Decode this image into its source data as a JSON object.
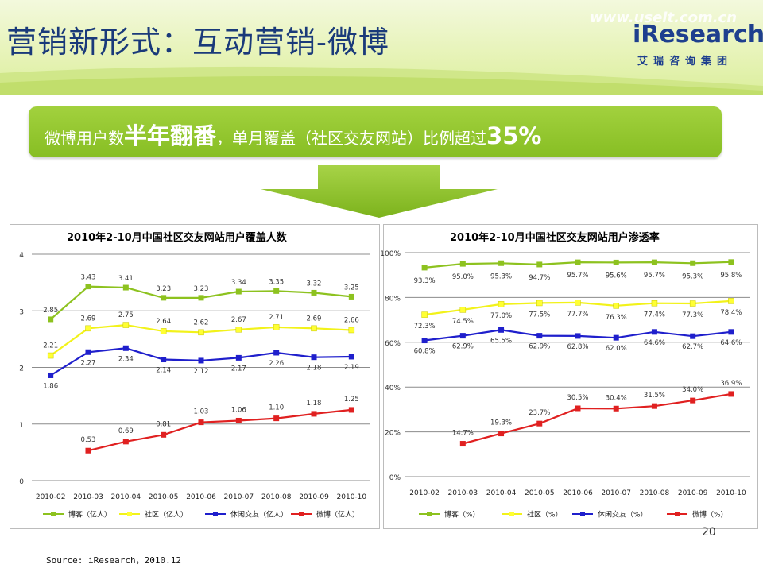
{
  "header": {
    "title": "营销新形式：互动营销-微博",
    "watermark": "www.useit.com.cn",
    "logo_text": "iResearch",
    "logo_cn": "艾瑞咨询集团"
  },
  "banner": {
    "part1": "微博用户数",
    "part2": "半年翻番",
    "part3": "，单月覆盖（社区交友网站）比例超过",
    "part4": "35%"
  },
  "page_number": "20",
  "source": "Source: iResearch，2010.12",
  "colors": {
    "blog": "#8dc21f",
    "community": "#ffff33",
    "casual": "#1f1fcc",
    "weibo": "#e02020"
  },
  "chart_data": [
    {
      "type": "line",
      "title": "2010年2-10月中国社区交友网站用户覆盖人数",
      "categories": [
        "2010-02",
        "2010-03",
        "2010-04",
        "2010-05",
        "2010-06",
        "2010-07",
        "2010-08",
        "2010-09",
        "2010-10"
      ],
      "ylim": [
        0,
        4
      ],
      "yticks": [
        0,
        1,
        2,
        3,
        4
      ],
      "ytick_labels": [
        "0",
        "1",
        "2",
        "3",
        "4"
      ],
      "grid": true,
      "legend": "bottom",
      "series": [
        {
          "name": "博客（亿人）",
          "color": "#8dc21f",
          "values": [
            2.85,
            3.43,
            3.41,
            3.23,
            3.23,
            3.34,
            3.35,
            3.32,
            3.25
          ],
          "labels": [
            "2.85",
            "3.43",
            "3.41",
            "3.23",
            "3.23",
            "3.34",
            "3.35",
            "3.32",
            "3.25"
          ]
        },
        {
          "name": "社区（亿人）",
          "color": "#ffff33",
          "values": [
            2.21,
            2.69,
            2.75,
            2.64,
            2.62,
            2.67,
            2.71,
            2.69,
            2.66
          ],
          "labels": [
            "2.21",
            "2.69",
            "2.75",
            "2.64",
            "2.62",
            "2.67",
            "2.71",
            "2.69",
            "2.66"
          ]
        },
        {
          "name": "休闲交友（亿人）",
          "color": "#1f1fcc",
          "values": [
            1.86,
            2.27,
            2.34,
            2.14,
            2.12,
            2.17,
            2.26,
            2.18,
            2.19
          ],
          "labels": [
            "1.86",
            "2.27",
            "2.34",
            "2.14",
            "2.12",
            "2.17",
            "2.26",
            "2.18",
            "2.19"
          ]
        },
        {
          "name": "微博（亿人）",
          "color": "#e02020",
          "values": [
            null,
            0.53,
            0.69,
            0.81,
            1.03,
            1.06,
            1.1,
            1.18,
            1.25
          ],
          "labels": [
            null,
            "0.53",
            "0.69",
            "0.81",
            "1.03",
            "1.06",
            "1.10",
            "1.18",
            "1.25"
          ]
        }
      ]
    },
    {
      "type": "line",
      "title": "2010年2-10月中国社区交友网站用户渗透率",
      "categories": [
        "2010-02",
        "2010-03",
        "2010-04",
        "2010-05",
        "2010-06",
        "2010-07",
        "2010-08",
        "2010-09",
        "2010-10"
      ],
      "ylim": [
        0,
        100
      ],
      "yticks": [
        0,
        20,
        40,
        60,
        80,
        100
      ],
      "ytick_labels": [
        "0%",
        "20%",
        "40%",
        "60%",
        "80%",
        "100%"
      ],
      "grid": true,
      "legend": "bottom",
      "series": [
        {
          "name": "博客（%）",
          "color": "#8dc21f",
          "values": [
            93.3,
            95.0,
            95.3,
            94.7,
            95.7,
            95.6,
            95.7,
            95.3,
            95.8
          ],
          "labels": [
            "93.3%",
            "95.0%",
            "95.3%",
            "94.7%",
            "95.7%",
            "95.6%",
            "95.7%",
            "95.3%",
            "95.8%"
          ]
        },
        {
          "name": "社区（%）",
          "color": "#ffff33",
          "values": [
            72.3,
            74.5,
            77.0,
            77.5,
            77.7,
            76.3,
            77.4,
            77.3,
            78.4
          ],
          "labels": [
            "72.3%",
            "74.5%",
            "77.0%",
            "77.5%",
            "77.7%",
            "76.3%",
            "77.4%",
            "77.3%",
            "78.4%"
          ]
        },
        {
          "name": "休闲交友（%）",
          "color": "#1f1fcc",
          "values": [
            60.8,
            62.9,
            65.5,
            62.9,
            62.8,
            62.0,
            64.6,
            62.7,
            64.6
          ],
          "labels": [
            "60.8%",
            "62.9%",
            "65.5%",
            "62.9%",
            "62.8%",
            "62.0%",
            "64.6%",
            "62.7%",
            "64.6%"
          ]
        },
        {
          "name": "微博（%）",
          "color": "#e02020",
          "values": [
            null,
            14.7,
            19.3,
            23.7,
            30.5,
            30.4,
            31.5,
            34.0,
            36.9
          ],
          "labels": [
            null,
            "14.7%",
            "19.3%",
            "23.7%",
            "30.5%",
            "30.4%",
            "31.5%",
            "34.0%",
            "36.9%"
          ]
        }
      ]
    }
  ]
}
